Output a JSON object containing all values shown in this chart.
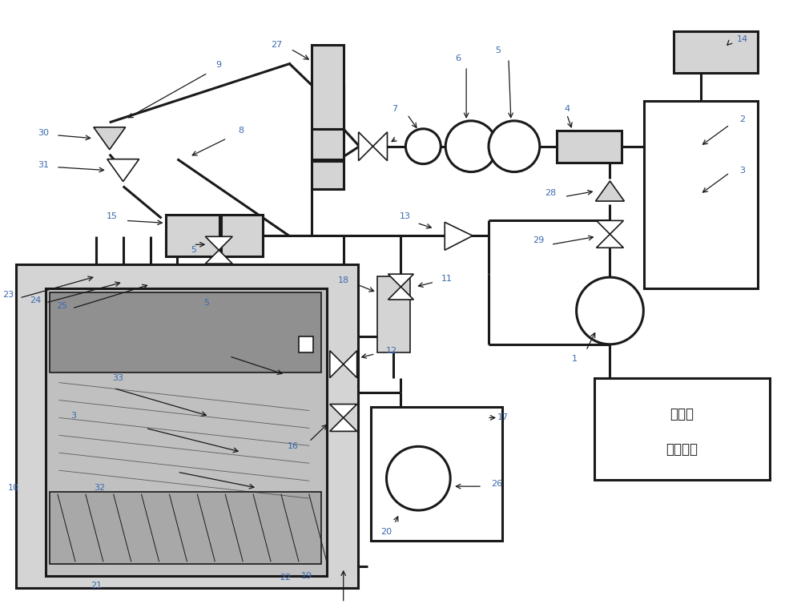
{
  "bg_color": "#ffffff",
  "line_color": "#1a1a1a",
  "gray_fill": "#b8b8b8",
  "light_gray": "#d4d4d4",
  "label_color": "#4a7aaf",
  "figsize": [
    10.0,
    7.54
  ],
  "dpi": 100,
  "controller_text1": "控制器",
  "controller_text2": "或上位机"
}
